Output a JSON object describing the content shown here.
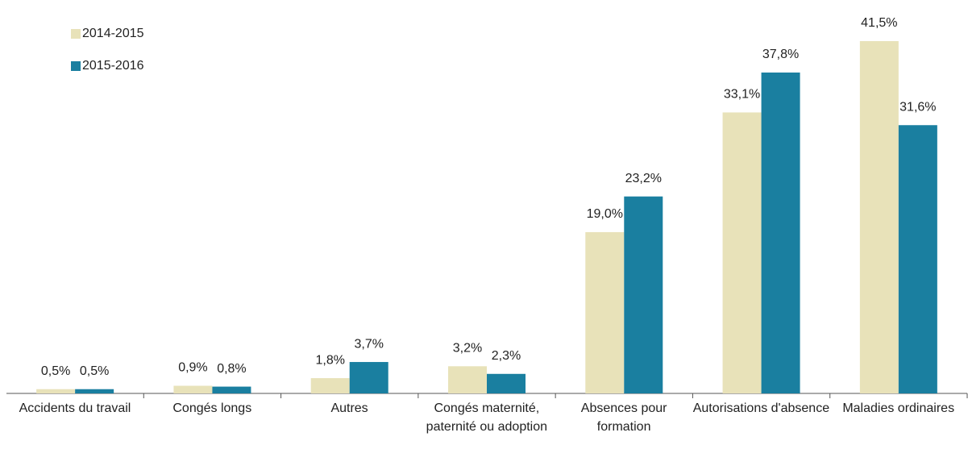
{
  "chart_data": {
    "type": "bar",
    "categories": [
      "Accidents du travail",
      "Congés longs",
      "Autres",
      "Congés maternité, paternité ou adoption",
      "Absences pour formation",
      "Autorisations d'absence",
      "Maladies ordinaires"
    ],
    "series": [
      {
        "name": "2014-2015",
        "color": "#e8e2b9",
        "values": [
          0.5,
          0.9,
          1.8,
          3.2,
          19.0,
          33.1,
          41.5
        ],
        "value_labels": [
          "0,5%",
          "0,9%",
          "1,8%",
          "3,2%",
          "19,0%",
          "33,1%",
          "41,5%"
        ]
      },
      {
        "name": "2015-2016",
        "color": "#1a7fa0",
        "values": [
          0.5,
          0.8,
          3.7,
          2.3,
          23.2,
          37.8,
          31.6
        ],
        "value_labels": [
          "0,5%",
          "0,8%",
          "3,7%",
          "2,3%",
          "23,2%",
          "37,8%",
          "31,6%"
        ]
      }
    ],
    "legend": "top-left"
  }
}
